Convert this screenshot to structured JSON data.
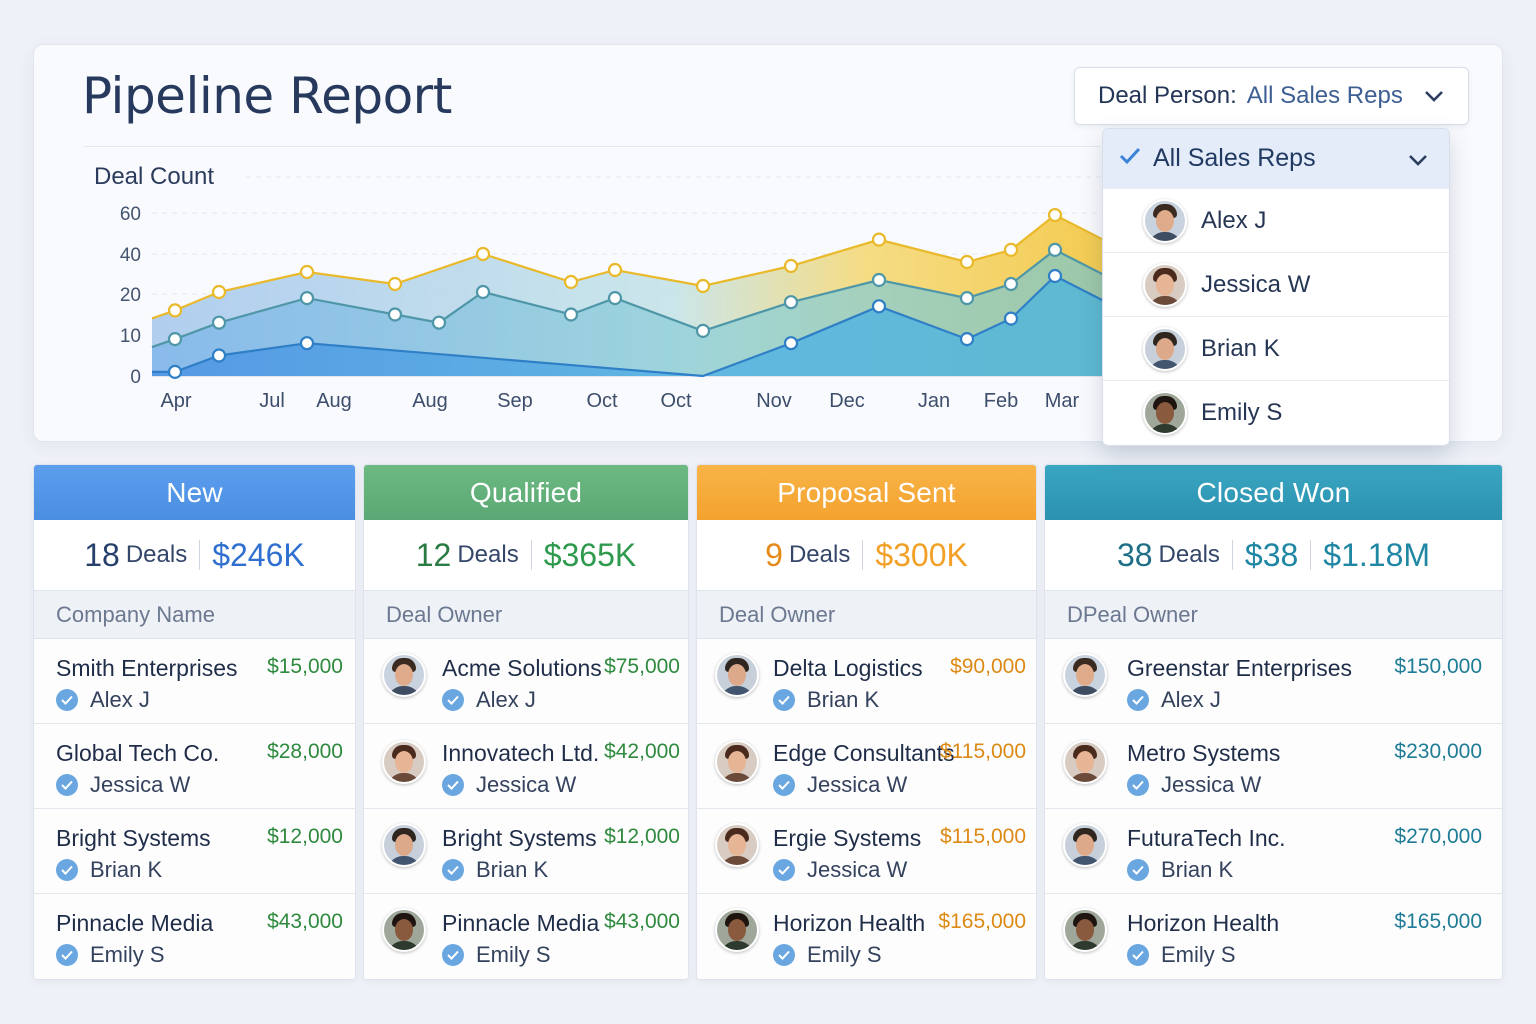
{
  "header": {
    "title": "Pipeline Report",
    "filter_label": "Deal Person:",
    "filter_value": "All Sales Reps"
  },
  "dropdown": {
    "selected": "All Sales Reps",
    "options": [
      "Alex J",
      "Jessica W",
      "Brian K",
      "Emily S"
    ]
  },
  "chart_data": {
    "type": "area",
    "ylabel": "Deal Count",
    "y_ticks": [
      "60",
      "40",
      "20",
      "10",
      "0"
    ],
    "x_labels": [
      "Apr",
      "Jul",
      "Aug",
      "Aug",
      "Sep",
      "Oct",
      "Oct",
      "Nov",
      "Dec",
      "Jan",
      "Feb",
      "Mar"
    ],
    "series": [
      {
        "color": "#f3c63f",
        "points": [
          [
            0,
            16
          ],
          [
            0.5,
            21
          ],
          [
            1.5,
            31
          ],
          [
            2.5,
            25
          ],
          [
            3.5,
            40
          ],
          [
            4.5,
            26
          ],
          [
            5,
            32
          ],
          [
            6,
            24
          ],
          [
            7,
            34
          ],
          [
            8,
            47
          ],
          [
            9,
            36
          ],
          [
            9.5,
            42
          ],
          [
            10,
            59
          ]
        ]
      },
      {
        "color": "#6fbfd0",
        "points": [
          [
            0,
            9
          ],
          [
            0.5,
            13
          ],
          [
            1.5,
            19
          ],
          [
            2.5,
            15
          ],
          [
            3,
            13
          ],
          [
            3.5,
            21
          ],
          [
            4.5,
            15
          ],
          [
            5,
            19
          ],
          [
            6,
            11
          ],
          [
            7,
            18
          ],
          [
            8,
            27
          ],
          [
            9,
            19
          ],
          [
            9.5,
            25
          ],
          [
            10,
            42
          ]
        ]
      },
      {
        "color": "#4a9fe0",
        "points": [
          [
            0,
            1
          ],
          [
            0.5,
            5
          ],
          [
            1.5,
            8
          ],
          [
            6,
            0
          ],
          [
            7,
            8
          ],
          [
            8,
            17
          ],
          [
            9,
            9
          ],
          [
            9.5,
            14
          ],
          [
            10,
            29
          ]
        ]
      }
    ]
  },
  "stages": [
    {
      "title": "New",
      "count": "18",
      "count_label": "Deals",
      "values": [
        "$246K"
      ],
      "column_header": "Company Name",
      "deals": [
        {
          "company": "Smith Enterprises",
          "amount": "$15,000",
          "owner": "Alex J"
        },
        {
          "company": "Global Tech Co.",
          "amount": "$28,000",
          "owner": "Jessica W"
        },
        {
          "company": "Bright Systems",
          "amount": "$12,000",
          "owner": "Brian K"
        },
        {
          "company": "Pinnacle Media",
          "amount": "$43,000",
          "owner": "Emily S"
        }
      ]
    },
    {
      "title": "Qualified",
      "count": "12",
      "count_label": "Deals",
      "values": [
        "$365K"
      ],
      "column_header": "Deal Owner",
      "deals": [
        {
          "company": "Acme Solutions",
          "amount": "$75,000",
          "owner": "Alex J"
        },
        {
          "company": "Innovatech Ltd.",
          "amount": "$42,000",
          "owner": "Jessica W"
        },
        {
          "company": "Bright Systems",
          "amount": "$12,000",
          "owner": "Brian K"
        },
        {
          "company": "Pinnacle Media",
          "amount": "$43,000",
          "owner": "Emily S"
        }
      ]
    },
    {
      "title": "Proposal Sent",
      "count": "9",
      "count_label": "Deals",
      "values": [
        "$300K"
      ],
      "column_header": "Deal Owner",
      "deals": [
        {
          "company": "Delta Logistics",
          "amount": "$90,000",
          "owner": "Brian K"
        },
        {
          "company": "Edge Consultants",
          "amount": "$115,000",
          "owner": "Jessica W"
        },
        {
          "company": "Ergie Systems",
          "amount": "$115,000",
          "owner": "Jessica W"
        },
        {
          "company": "Horizon Health",
          "amount": "$165,000",
          "owner": "Emily S"
        }
      ]
    },
    {
      "title": "Closed Won",
      "count": "38",
      "count_label": "Deals",
      "values": [
        "$38",
        "$1.18M"
      ],
      "column_header": "DPeal Owner",
      "deals": [
        {
          "company": "Greenstar Enterprises",
          "amount": "$150,000",
          "owner": "Alex J"
        },
        {
          "company": "Metro Systems",
          "amount": "$230,000",
          "owner": "Jessica W"
        },
        {
          "company": "FuturaTech Inc.",
          "amount": "$270,000",
          "owner": "Brian K"
        },
        {
          "company": "Horizon Health",
          "amount": "$165,000",
          "owner": "Emily S"
        }
      ]
    }
  ]
}
